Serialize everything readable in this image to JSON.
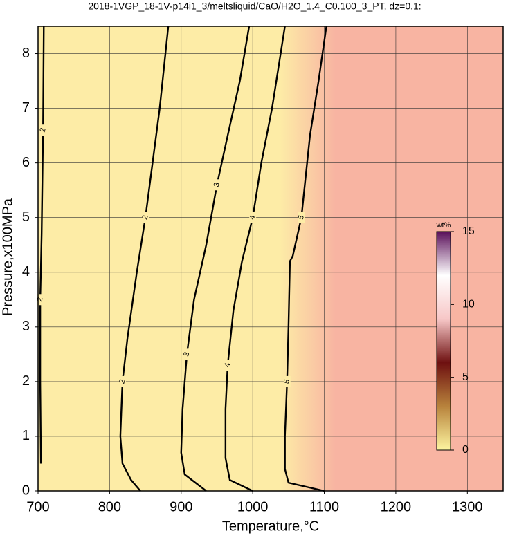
{
  "chart_data": {
    "type": "contour",
    "title": "2018-1VGP_18-1V-p14i1_3/meltsliquid/CaO/H2O_1.4_C0.100_3_PT, dz=0.1:",
    "xlabel": "Temperature,°C",
    "ylabel": "Pressure,x100MPa",
    "xlim": [
      700,
      1350
    ],
    "ylim": [
      0,
      8.5
    ],
    "xticks": [
      700,
      800,
      900,
      1000,
      1100,
      1200,
      1300
    ],
    "yticks": [
      0,
      1,
      2,
      3,
      4,
      5,
      6,
      7,
      8
    ],
    "grid": true,
    "contours": [
      {
        "level": 2,
        "x": [
          704,
          703,
          703,
          705,
          707,
          708
        ],
        "y": [
          0.5,
          2,
          3.5,
          4.7,
          6.6,
          8.5
        ]
      },
      {
        "level": 2,
        "x": [
          843,
          830,
          818,
          815,
          818,
          825,
          838,
          850,
          860,
          870,
          882
        ],
        "y": [
          0,
          0.2,
          0.5,
          1,
          2,
          2.8,
          4,
          5,
          6,
          7,
          8.5
        ]
      },
      {
        "level": 3,
        "x": [
          935,
          905,
          900,
          902,
          908,
          918,
          935,
          950,
          965,
          982,
          995
        ],
        "y": [
          0,
          0.3,
          0.7,
          1.5,
          2.5,
          3.5,
          4.5,
          5.6,
          6.5,
          7.5,
          8.5
        ]
      },
      {
        "level": 4,
        "x": [
          1000,
          968,
          962,
          962,
          965,
          973,
          985,
          1000,
          1012,
          1027,
          1045
        ],
        "y": [
          0,
          0.2,
          0.6,
          1.5,
          2.3,
          3.3,
          4.2,
          5,
          6,
          7,
          8.5
        ]
      },
      {
        "level": 5,
        "x": [
          1100,
          1050,
          1045,
          1045,
          1048,
          1050,
          1052,
          1056,
          1068,
          1080,
          1092,
          1103
        ],
        "y": [
          0,
          0.15,
          0.4,
          1,
          2,
          3,
          4.2,
          4.3,
          5,
          6.5,
          7.5,
          8.5
        ]
      }
    ],
    "colorbar": {
      "label": "wt%",
      "lim": [
        0,
        15
      ],
      "ticks": [
        0,
        5,
        10,
        15
      ],
      "colors": [
        "#fdf5a0",
        "#b8833c",
        "#6e1010",
        "#f7c7c7",
        "#ffffff",
        "#5a0f5a"
      ]
    },
    "fill_colors": [
      "#fdeca6",
      "#f8b4a2"
    ]
  }
}
